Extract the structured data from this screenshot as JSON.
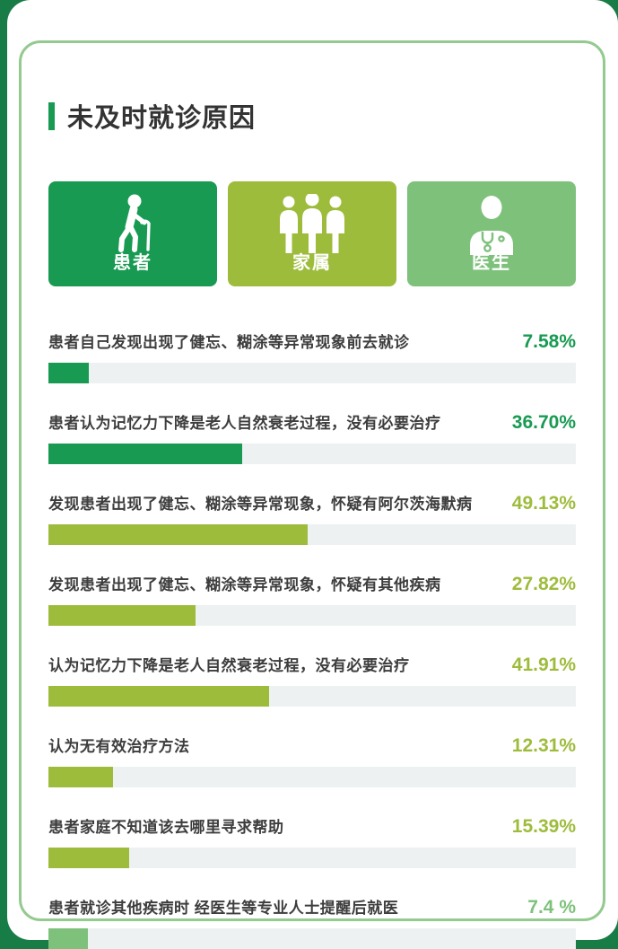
{
  "page": {
    "title": "未及时就诊原因"
  },
  "categories": [
    {
      "label": "患者",
      "icon": "elderly-person-icon",
      "color": "#189a52"
    },
    {
      "label": "家属",
      "icon": "family-group-icon",
      "color": "#9ebc3c"
    },
    {
      "label": "医生",
      "icon": "doctor-icon",
      "color": "#7ec17b"
    }
  ],
  "chart_data": {
    "type": "bar",
    "orientation": "horizontal",
    "title": "未及时就诊原因",
    "unit": "%",
    "xlim": [
      0,
      100
    ],
    "grid": false,
    "legend": [
      "患者",
      "家属",
      "医生"
    ],
    "colors": {
      "patient": "#189a52",
      "family": "#9ebc3c",
      "doctor": "#7ec17b",
      "track": "#edf1f2"
    },
    "rows": [
      {
        "label": "患者自己发现出现了健忘、糊涂等异常现象前去就诊",
        "value": 7.58,
        "display": "7.58%",
        "group": "patient"
      },
      {
        "label": "患者认为记忆力下降是老人自然衰老过程，没有必要治疗",
        "value": 36.7,
        "display": "36.70%",
        "group": "patient"
      },
      {
        "label": "发现患者出现了健忘、糊涂等异常现象，怀疑有阿尔茨海默病",
        "value": 49.13,
        "display": "49.13%",
        "group": "family"
      },
      {
        "label": "发现患者出现了健忘、糊涂等异常现象，怀疑有其他疾病",
        "value": 27.82,
        "display": "27.82%",
        "group": "family"
      },
      {
        "label": "认为记忆力下降是老人自然衰老过程，没有必要治疗",
        "value": 41.91,
        "display": "41.91%",
        "group": "family"
      },
      {
        "label": "认为无有效治疗方法",
        "value": 12.31,
        "display": "12.31%",
        "group": "family"
      },
      {
        "label": "患者家庭不知道该去哪里寻求帮助",
        "value": 15.39,
        "display": "15.39%",
        "group": "family"
      },
      {
        "label": "患者就诊其他疾病时 经医生等专业人士提醒后就医",
        "value": 7.4,
        "display": "7.4 %",
        "group": "doctor"
      }
    ]
  }
}
